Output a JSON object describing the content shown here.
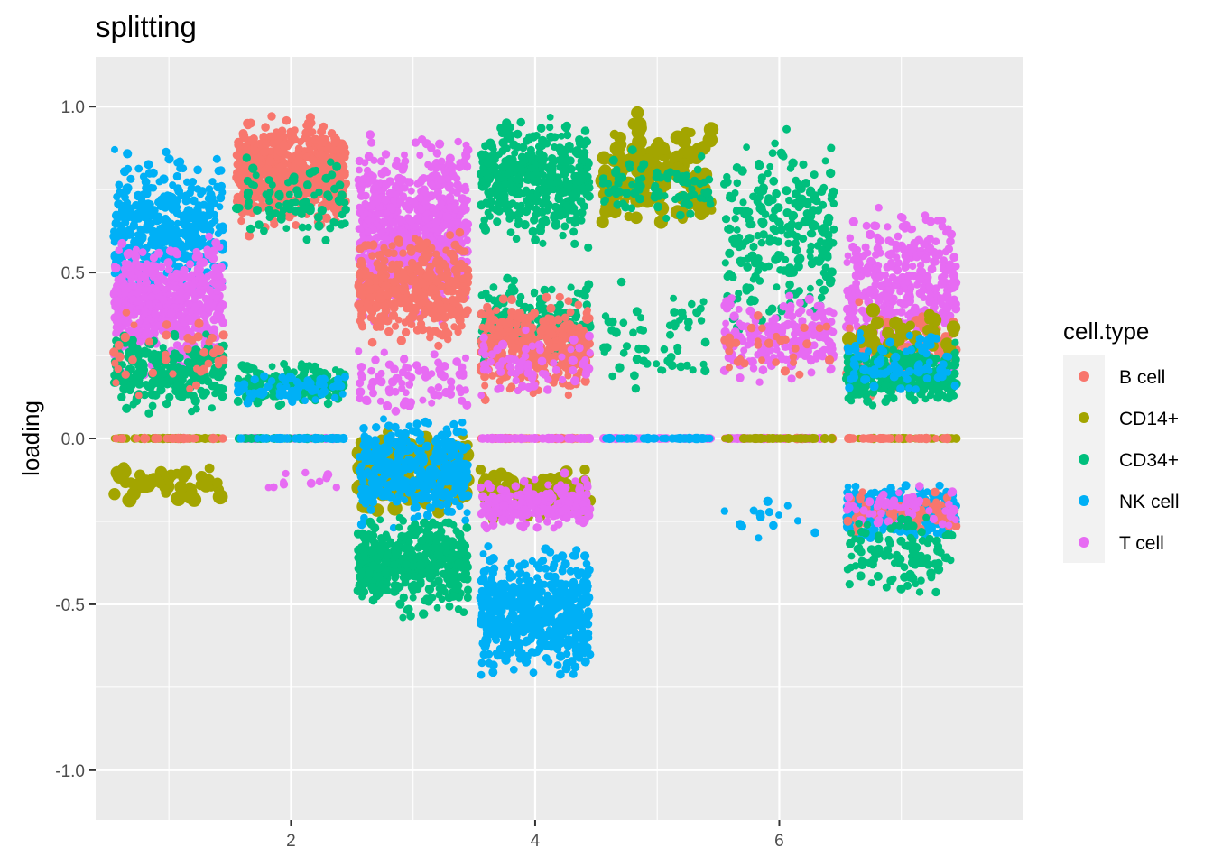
{
  "chart_data": {
    "type": "scatter",
    "title": "splitting",
    "xlabel": "",
    "ylabel": "loading",
    "xlim": [
      0.4,
      8.0
    ],
    "ylim": [
      -1.15,
      1.15
    ],
    "x_ticks": [
      2,
      4,
      6
    ],
    "x_tick_labels": [
      "2",
      "4",
      "6"
    ],
    "y_ticks": [
      -1.0,
      -0.5,
      0.0,
      0.5,
      1.0
    ],
    "y_tick_labels": [
      "-1.0",
      "-0.5",
      "0.0",
      "0.5",
      "1.0"
    ],
    "grid": true,
    "legend": {
      "title": "cell.type",
      "position": "right",
      "entries": [
        {
          "name": "B cell",
          "color": "#F8766D"
        },
        {
          "name": "CD14+",
          "color": "#A3A500"
        },
        {
          "name": "CD34+",
          "color": "#00BF7D"
        },
        {
          "name": "NK cell",
          "color": "#00B0F6"
        },
        {
          "name": "T cell",
          "color": "#E76BF3"
        }
      ]
    },
    "jitter_width": 0.45,
    "clusters": [
      {
        "x": 1,
        "series": "NK cell",
        "n": 420,
        "y_min": 0.35,
        "y_max": 0.9
      },
      {
        "x": 1,
        "series": "T cell",
        "n": 520,
        "y_min": 0.15,
        "y_max": 0.65
      },
      {
        "x": 1,
        "series": "CD34+",
        "n": 260,
        "y_min": 0.05,
        "y_max": 0.35
      },
      {
        "x": 1,
        "series": "B cell",
        "n": 40,
        "y_min": 0.1,
        "y_max": 0.4
      },
      {
        "x": 1,
        "series": "CD14+",
        "n": 50,
        "y_min": -0.22,
        "y_max": -0.06,
        "size": "large"
      },
      {
        "x": 1,
        "series": "CD14+",
        "n": 70,
        "y_min": 0.0,
        "y_max": 0.0
      },
      {
        "x": 1,
        "series": "B cell",
        "n": 30,
        "y_min": 0.0,
        "y_max": 0.0
      },
      {
        "x": 2,
        "series": "B cell",
        "n": 640,
        "y_min": 0.6,
        "y_max": 1.0
      },
      {
        "x": 2,
        "series": "CD34+",
        "n": 90,
        "y_min": 0.55,
        "y_max": 0.9
      },
      {
        "x": 2,
        "series": "CD34+",
        "n": 160,
        "y_min": 0.08,
        "y_max": 0.25
      },
      {
        "x": 2,
        "series": "NK cell",
        "n": 70,
        "y_min": 0.08,
        "y_max": 0.22
      },
      {
        "x": 2,
        "series": "T cell",
        "n": 12,
        "y_min": -0.18,
        "y_max": -0.08
      },
      {
        "x": 2,
        "series": "T cell",
        "n": 45,
        "y_min": 0.0,
        "y_max": 0.0
      },
      {
        "x": 2,
        "series": "CD34+",
        "n": 45,
        "y_min": 0.0,
        "y_max": 0.0
      },
      {
        "x": 2,
        "series": "NK cell",
        "n": 35,
        "y_min": 0.0,
        "y_max": 0.0
      },
      {
        "x": 3,
        "series": "T cell",
        "n": 720,
        "y_min": 0.3,
        "y_max": 0.98
      },
      {
        "x": 3,
        "series": "B cell",
        "n": 420,
        "y_min": 0.25,
        "y_max": 0.65
      },
      {
        "x": 3,
        "series": "T cell",
        "n": 80,
        "y_min": 0.05,
        "y_max": 0.3
      },
      {
        "x": 3,
        "series": "CD14+",
        "n": 230,
        "y_min": -0.25,
        "y_max": 0.05,
        "size": "large"
      },
      {
        "x": 3,
        "series": "NK cell",
        "n": 360,
        "y_min": -0.3,
        "y_max": 0.1
      },
      {
        "x": 3,
        "series": "CD34+",
        "n": 480,
        "y_min": -0.55,
        "y_max": -0.2
      },
      {
        "x": 4,
        "series": "CD34+",
        "n": 460,
        "y_min": 0.55,
        "y_max": 1.0
      },
      {
        "x": 4,
        "series": "CD34+",
        "n": 220,
        "y_min": 0.2,
        "y_max": 0.5
      },
      {
        "x": 4,
        "series": "B cell",
        "n": 420,
        "y_min": 0.1,
        "y_max": 0.45
      },
      {
        "x": 4,
        "series": "T cell",
        "n": 70,
        "y_min": 0.1,
        "y_max": 0.35
      },
      {
        "x": 4,
        "series": "B cell",
        "n": 60,
        "y_min": 0.0,
        "y_max": 0.0
      },
      {
        "x": 4,
        "series": "T cell",
        "n": 60,
        "y_min": 0.0,
        "y_max": 0.0
      },
      {
        "x": 4,
        "series": "CD14+",
        "n": 100,
        "y_min": -0.25,
        "y_max": -0.08,
        "size": "large"
      },
      {
        "x": 4,
        "series": "T cell",
        "n": 220,
        "y_min": -0.3,
        "y_max": -0.1
      },
      {
        "x": 4,
        "series": "NK cell",
        "n": 560,
        "y_min": -0.75,
        "y_max": -0.3
      },
      {
        "x": 5,
        "series": "CD14+",
        "n": 170,
        "y_min": 0.6,
        "y_max": 1.0,
        "size": "large"
      },
      {
        "x": 5,
        "series": "CD34+",
        "n": 80,
        "y_min": 0.6,
        "y_max": 0.9
      },
      {
        "x": 5,
        "series": "CD34+",
        "n": 60,
        "y_min": 0.1,
        "y_max": 0.5
      },
      {
        "x": 5,
        "series": "T cell",
        "n": 55,
        "y_min": 0.0,
        "y_max": 0.0
      },
      {
        "x": 5,
        "series": "NK cell",
        "n": 50,
        "y_min": 0.0,
        "y_max": 0.0
      },
      {
        "x": 6,
        "series": "CD34+",
        "n": 260,
        "y_min": 0.25,
        "y_max": 1.0
      },
      {
        "x": 6,
        "series": "T cell",
        "n": 210,
        "y_min": 0.15,
        "y_max": 0.45
      },
      {
        "x": 6,
        "series": "B cell",
        "n": 30,
        "y_min": 0.15,
        "y_max": 0.4
      },
      {
        "x": 6,
        "series": "B cell",
        "n": 50,
        "y_min": 0.0,
        "y_max": 0.0
      },
      {
        "x": 6,
        "series": "T cell",
        "n": 50,
        "y_min": 0.0,
        "y_max": 0.0
      },
      {
        "x": 6,
        "series": "CD14+",
        "n": 40,
        "y_min": 0.0,
        "y_max": 0.0
      },
      {
        "x": 6,
        "series": "NK cell",
        "n": 14,
        "y_min": -0.33,
        "y_max": -0.14
      },
      {
        "x": 7,
        "series": "T cell",
        "n": 420,
        "y_min": 0.15,
        "y_max": 0.75
      },
      {
        "x": 7,
        "series": "B cell",
        "n": 120,
        "y_min": 0.1,
        "y_max": 0.42
      },
      {
        "x": 7,
        "series": "CD14+",
        "n": 40,
        "y_min": 0.2,
        "y_max": 0.42,
        "size": "large"
      },
      {
        "x": 7,
        "series": "CD34+",
        "n": 260,
        "y_min": 0.08,
        "y_max": 0.3
      },
      {
        "x": 7,
        "series": "NK cell",
        "n": 90,
        "y_min": 0.1,
        "y_max": 0.35
      },
      {
        "x": 7,
        "series": "CD14+",
        "n": 50,
        "y_min": 0.0,
        "y_max": 0.0
      },
      {
        "x": 7,
        "series": "B cell",
        "n": 40,
        "y_min": 0.0,
        "y_max": 0.0
      },
      {
        "x": 7,
        "series": "NK cell",
        "n": 300,
        "y_min": -0.32,
        "y_max": -0.12
      },
      {
        "x": 7,
        "series": "B cell",
        "n": 80,
        "y_min": -0.3,
        "y_max": -0.15
      },
      {
        "x": 7,
        "series": "T cell",
        "n": 60,
        "y_min": -0.28,
        "y_max": -0.14
      },
      {
        "x": 7,
        "series": "CD34+",
        "n": 110,
        "y_min": -0.5,
        "y_max": -0.2
      }
    ]
  }
}
